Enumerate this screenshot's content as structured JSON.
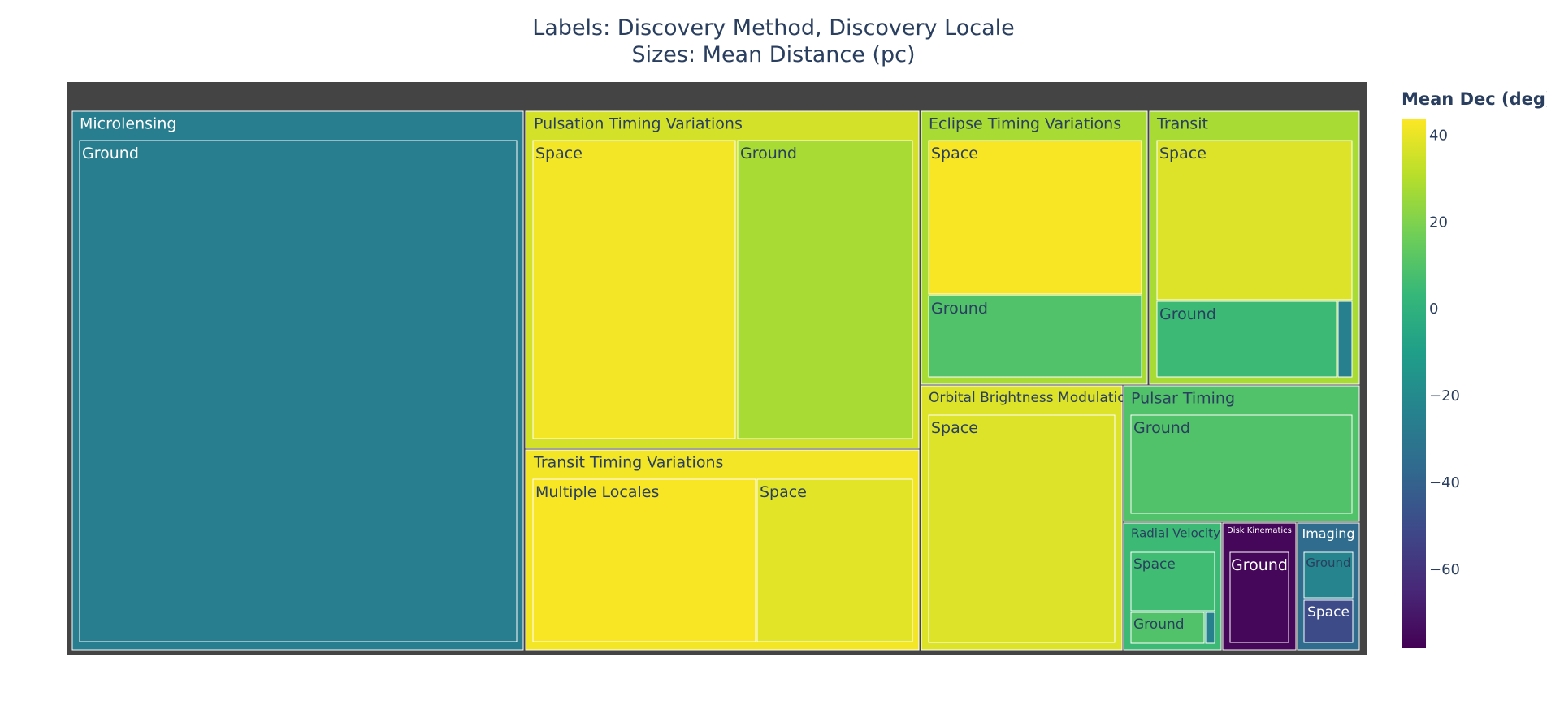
{
  "title": {
    "line1": "Labels: Discovery Method, Discovery Locale",
    "line2": "Sizes: Mean Distance (pc)"
  },
  "chart_data": {
    "type": "treemap",
    "colorscale": "Viridis",
    "background_color": "#444444",
    "colorbar": {
      "title": "Mean Dec (deg)",
      "range": [
        -78,
        44
      ],
      "ticks": [
        40,
        20,
        0,
        -20,
        -40,
        -60
      ],
      "tick_labels": [
        "40",
        "20",
        "0",
        "−20",
        "−40",
        "−60"
      ]
    },
    "nodes": [
      {
        "method": "Microlensing",
        "color_value": -26,
        "children": [
          {
            "locale": "Ground",
            "color_value": -26
          }
        ]
      },
      {
        "method": "Pulsation Timing Variations",
        "color_value": 36,
        "children": [
          {
            "locale": "Space",
            "color_value": 42
          },
          {
            "locale": "Ground",
            "color_value": 28
          }
        ]
      },
      {
        "method": "Transit Timing Variations",
        "color_value": 42,
        "children": [
          {
            "locale": "Multiple Locales",
            "color_value": 43
          },
          {
            "locale": "Space",
            "color_value": 39
          }
        ]
      },
      {
        "method": "Eclipse Timing Variations",
        "color_value": 28,
        "children": [
          {
            "locale": "Space",
            "color_value": 43
          },
          {
            "locale": "Ground",
            "color_value": 10
          }
        ]
      },
      {
        "method": "Transit",
        "color_value": 28,
        "children": [
          {
            "locale": "Space",
            "color_value": 38
          },
          {
            "locale": "Ground",
            "color_value": 5
          },
          {
            "locale": "",
            "color_value": -25
          }
        ]
      },
      {
        "method": "Orbital Brightness Modulation",
        "color_value": 38,
        "children": [
          {
            "locale": "Space",
            "color_value": 38
          }
        ]
      },
      {
        "method": "Pulsar Timing",
        "color_value": 10,
        "children": [
          {
            "locale": "Ground",
            "color_value": 10
          }
        ]
      },
      {
        "method": "Radial Velocity",
        "color_value": 5,
        "children": [
          {
            "locale": "Space",
            "color_value": 6
          },
          {
            "locale": "Ground",
            "color_value": 10
          },
          {
            "locale": "",
            "color_value": -25
          }
        ]
      },
      {
        "method": "Disk Kinematics",
        "color_value": -76,
        "children": [
          {
            "locale": "Ground",
            "color_value": -76
          }
        ]
      },
      {
        "method": "Imaging",
        "color_value": -35,
        "children": [
          {
            "locale": "Ground",
            "color_value": -23
          },
          {
            "locale": "Space",
            "color_value": -50
          }
        ]
      }
    ]
  }
}
